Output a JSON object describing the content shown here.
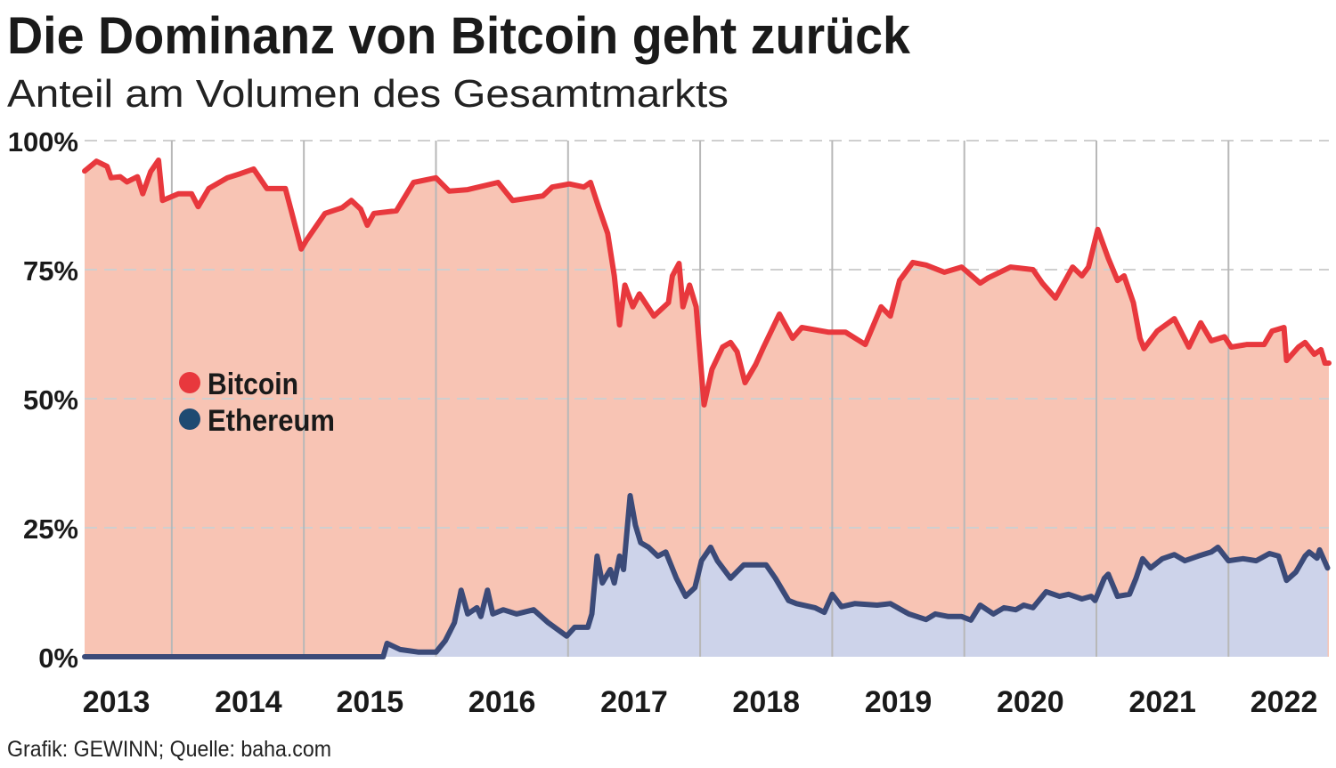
{
  "chart_data": {
    "type": "area",
    "title": "Die Dominanz von Bitcoin geht zurück",
    "subtitle": "Anteil am Volumen des Gesamtmarkts",
    "source": "Grafik: GEWINN; Quelle: baha.com",
    "x_unit": "year (decimal)",
    "xlim": [
      2013.34,
      2022.76
    ],
    "ylim": [
      0,
      100
    ],
    "y_ticks": [
      "0%",
      "25%",
      "50%",
      "75%",
      "100%"
    ],
    "y_tick_values": [
      0,
      25,
      50,
      75,
      100
    ],
    "x_ticks": [
      "2013",
      "2014",
      "2015",
      "2016",
      "2017",
      "2018",
      "2019",
      "2020",
      "2021",
      "2022"
    ],
    "grid": true,
    "legend_position": "center-left",
    "series": [
      {
        "name": "Bitcoin",
        "color": "#e8383d",
        "fill": "#f8c4b4",
        "x": [
          2013.34,
          2013.43,
          2013.51,
          2013.54,
          2013.61,
          2013.66,
          2013.74,
          2013.78,
          2013.84,
          2013.9,
          2013.93,
          2014.05,
          2014.15,
          2014.2,
          2014.28,
          2014.42,
          2014.52,
          2014.62,
          2014.72,
          2014.86,
          2014.91,
          2014.98,
          2015.02,
          2015.16,
          2015.29,
          2015.36,
          2015.43,
          2015.48,
          2015.53,
          2015.7,
          2015.83,
          2016.0,
          2016.1,
          2016.24,
          2016.47,
          2016.58,
          2016.81,
          2016.88,
          2017.01,
          2017.12,
          2017.17,
          2017.23,
          2017.3,
          2017.35,
          2017.39,
          2017.43,
          2017.49,
          2017.54,
          2017.65,
          2017.76,
          2017.79,
          2017.84,
          2017.87,
          2017.92,
          2017.97,
          2018.03,
          2018.09,
          2018.17,
          2018.23,
          2018.28,
          2018.34,
          2018.42,
          2018.48,
          2018.6,
          2018.7,
          2018.77,
          2018.97,
          2019.1,
          2019.25,
          2019.37,
          2019.44,
          2019.51,
          2019.61,
          2019.71,
          2019.85,
          2019.98,
          2020.12,
          2020.18,
          2020.35,
          2020.52,
          2020.59,
          2020.69,
          2020.82,
          2020.89,
          2020.94,
          2021.01,
          2021.09,
          2021.16,
          2021.21,
          2021.28,
          2021.33,
          2021.36,
          2021.46,
          2021.59,
          2021.7,
          2021.79,
          2021.87,
          2021.97,
          2022.02,
          2022.14,
          2022.27,
          2022.33,
          2022.42,
          2022.44,
          2022.53,
          2022.58,
          2022.65,
          2022.7,
          2022.73,
          2022.76
        ],
        "values": [
          94.1,
          96,
          95,
          92.8,
          93,
          92,
          93,
          89.7,
          94,
          96.2,
          88.4,
          89.7,
          89.7,
          87.2,
          90.7,
          92.8,
          93.6,
          94.5,
          90.7,
          90.7,
          85.9,
          79,
          80.7,
          85.9,
          87,
          88.4,
          86.7,
          83.6,
          85.9,
          86.4,
          91.9,
          92.8,
          90.2,
          90.5,
          91.9,
          88.4,
          89.3,
          91,
          91.6,
          91,
          91.9,
          87.2,
          82,
          73.8,
          64.3,
          72,
          67.8,
          70.3,
          66,
          68.6,
          73.8,
          76.2,
          67.8,
          72,
          67.8,
          48.8,
          55.7,
          60,
          60.9,
          59.1,
          53.1,
          56.6,
          60,
          66.4,
          61.7,
          63.8,
          62.9,
          62.9,
          60.5,
          67.8,
          66,
          72.9,
          76.4,
          75.9,
          74.5,
          75.5,
          72.4,
          73.4,
          75.5,
          75,
          72.4,
          69.5,
          75.5,
          73.8,
          75.5,
          82.8,
          77.2,
          72.9,
          73.8,
          68.6,
          61.7,
          59.7,
          63.1,
          65.5,
          60,
          64.7,
          61.2,
          62,
          60,
          60.5,
          60.5,
          63.1,
          63.8,
          57.4,
          60,
          60.9,
          58.6,
          59.5,
          56.9,
          56.9
        ]
      },
      {
        "name": "Ethereum",
        "color": "#3b4a78",
        "fill": "#cdd3ea",
        "legend_color": "#1e4a72",
        "x": [
          2013.34,
          2015.6,
          2015.63,
          2015.73,
          2015.87,
          2016.0,
          2016.07,
          2016.14,
          2016.19,
          2016.24,
          2016.31,
          2016.34,
          2016.39,
          2016.43,
          2016.51,
          2016.61,
          2016.74,
          2016.85,
          2016.99,
          2017.05,
          2017.15,
          2017.18,
          2017.22,
          2017.26,
          2017.32,
          2017.35,
          2017.39,
          2017.42,
          2017.47,
          2017.51,
          2017.55,
          2017.61,
          2017.68,
          2017.74,
          2017.82,
          2017.89,
          2017.96,
          2018.01,
          2018.08,
          2018.13,
          2018.23,
          2018.33,
          2018.43,
          2018.5,
          2018.57,
          2018.67,
          2018.73,
          2018.87,
          2018.94,
          2019.0,
          2019.07,
          2019.17,
          2019.34,
          2019.44,
          2019.58,
          2019.71,
          2019.78,
          2019.88,
          2019.98,
          2020.05,
          2020.12,
          2020.22,
          2020.3,
          2020.39,
          2020.45,
          2020.52,
          2020.62,
          2020.72,
          2020.79,
          2020.89,
          2020.96,
          2020.99,
          2021.06,
          2021.09,
          2021.16,
          2021.25,
          2021.3,
          2021.35,
          2021.41,
          2021.5,
          2021.59,
          2021.67,
          2021.77,
          2021.87,
          2021.92,
          2022.0,
          2022.11,
          2022.21,
          2022.31,
          2022.38,
          2022.44,
          2022.51,
          2022.58,
          2022.61,
          2022.67,
          2022.69,
          2022.75
        ],
        "values": [
          0,
          0,
          2.6,
          1.4,
          0.9,
          0.9,
          3.1,
          6.6,
          12.9,
          8.3,
          9.5,
          7.8,
          12.9,
          8.3,
          9.1,
          8.3,
          9.1,
          6.6,
          4,
          5.7,
          5.7,
          8.3,
          19.5,
          14.3,
          16.9,
          14.3,
          19.5,
          16.9,
          31.2,
          25.5,
          22.1,
          21.2,
          19.5,
          20.3,
          15.2,
          11.7,
          13.4,
          18.6,
          21.2,
          18.6,
          15.2,
          17.8,
          17.8,
          17.8,
          15.2,
          10.9,
          10.3,
          9.5,
          8.6,
          12.1,
          9.7,
          10.3,
          10,
          10.3,
          8.3,
          7.2,
          8.3,
          7.8,
          7.8,
          7.1,
          10,
          8.3,
          9.5,
          9.1,
          10,
          9.5,
          12.6,
          11.7,
          12.1,
          11.2,
          11.7,
          10.9,
          15.2,
          16,
          11.7,
          12.1,
          15.2,
          19,
          17.2,
          19,
          19.8,
          18.6,
          19.5,
          20.3,
          21.2,
          18.6,
          19,
          18.6,
          20,
          19.5,
          14.8,
          16.4,
          19.5,
          20.3,
          19.1,
          20.7,
          17.2
        ]
      }
    ]
  }
}
